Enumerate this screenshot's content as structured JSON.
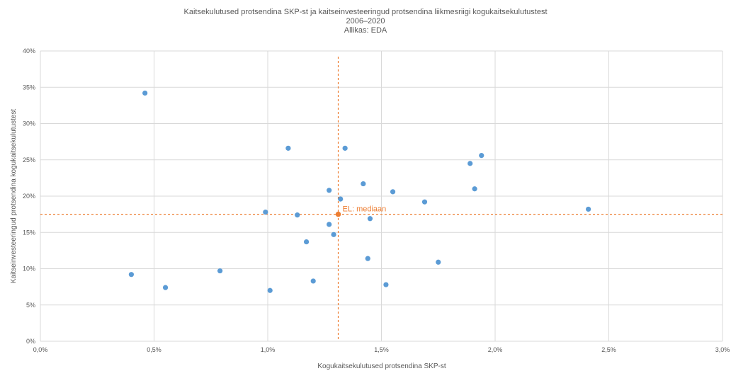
{
  "chart_data": {
    "type": "scatter",
    "title_lines": [
      "Kaitsekulutused protsendina SKP-st ja kaitseinvesteeringud protsendina liikmesriigi kogukaitsekulutustest",
      "2006–2020",
      "Allikas: EDA"
    ],
    "xlabel": "Kogukaitsekulutused protsendina SKP-st",
    "ylabel": "Kaitseinvesteeringud protsendina kogukaitsekulutustest",
    "xlim": [
      0,
      3.0
    ],
    "ylim": [
      0,
      40
    ],
    "x_ticks": [
      {
        "value": 0.0,
        "label": "0,0%"
      },
      {
        "value": 0.5,
        "label": "0,5%"
      },
      {
        "value": 1.0,
        "label": "1,0%"
      },
      {
        "value": 1.5,
        "label": "1,5%"
      },
      {
        "value": 2.0,
        "label": "2,0%"
      },
      {
        "value": 2.5,
        "label": "2,5%"
      },
      {
        "value": 3.0,
        "label": "3,0%"
      }
    ],
    "y_ticks": [
      {
        "value": 0,
        "label": "0%"
      },
      {
        "value": 5,
        "label": "5%"
      },
      {
        "value": 10,
        "label": "10%"
      },
      {
        "value": 15,
        "label": "15%"
      },
      {
        "value": 20,
        "label": "20%"
      },
      {
        "value": 25,
        "label": "25%"
      },
      {
        "value": 30,
        "label": "30%"
      },
      {
        "value": 35,
        "label": "35%"
      },
      {
        "value": 40,
        "label": "40%"
      }
    ],
    "grid": true,
    "series": [
      {
        "color": "#5B9BD5",
        "points": [
          {
            "x": 0.46,
            "y": 34.2
          },
          {
            "x": 0.4,
            "y": 9.2
          },
          {
            "x": 0.55,
            "y": 7.4
          },
          {
            "x": 0.79,
            "y": 9.7
          },
          {
            "x": 0.99,
            "y": 17.8
          },
          {
            "x": 1.01,
            "y": 7.0
          },
          {
            "x": 1.09,
            "y": 26.6
          },
          {
            "x": 1.13,
            "y": 17.4
          },
          {
            "x": 1.17,
            "y": 13.7
          },
          {
            "x": 1.2,
            "y": 8.3
          },
          {
            "x": 1.27,
            "y": 20.8
          },
          {
            "x": 1.27,
            "y": 16.1
          },
          {
            "x": 1.29,
            "y": 14.7
          },
          {
            "x": 1.32,
            "y": 19.6
          },
          {
            "x": 1.34,
            "y": 26.6
          },
          {
            "x": 1.42,
            "y": 21.7
          },
          {
            "x": 1.44,
            "y": 11.4
          },
          {
            "x": 1.45,
            "y": 16.9
          },
          {
            "x": 1.52,
            "y": 7.8
          },
          {
            "x": 1.55,
            "y": 20.6
          },
          {
            "x": 1.69,
            "y": 19.2
          },
          {
            "x": 1.75,
            "y": 10.9
          },
          {
            "x": 1.89,
            "y": 24.5
          },
          {
            "x": 1.91,
            "y": 21.0
          },
          {
            "x": 1.94,
            "y": 25.6
          },
          {
            "x": 2.41,
            "y": 18.2
          }
        ]
      }
    ],
    "median": {
      "label": "EL: mediaan",
      "x": 1.31,
      "y": 17.5,
      "color": "#ED7D31"
    }
  }
}
